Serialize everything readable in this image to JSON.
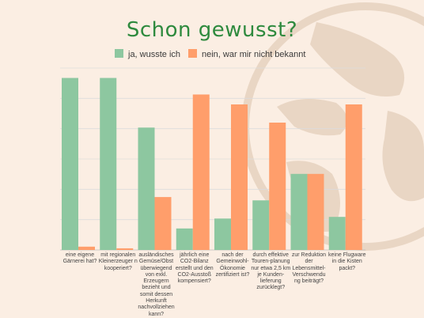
{
  "chart_data": {
    "type": "bar",
    "title": "Schon gewusst?",
    "categories": [
      "eine eigene Gärnerei hat?",
      "mit regionalen Kleinerzeuger n kooperiert?",
      "ausländisches Gemüse/Obst überwiegend von exkl. Erzeugern bezieht und somit dessen Herkunft nachvollziehen kann?",
      "jährlich eine CO2-Bilanz erstellt und den CO2-Ausstoß kompensiert?",
      "nach der Gemeinwohl-Ökonomie zertifiziert ist?",
      "durch effektive Touren-planung nur etwa 2,5 km je Kunden-lieferung zurücklegt?",
      "zur Reduktion der Lebensmittel-Verschwendu ng beiträgt?",
      "keine Flugware in die Kisten packt?"
    ],
    "series": [
      {
        "name": "ja, wusste ich",
        "color": "#8dc7a0",
        "values": [
          52,
          52,
          37,
          6.5,
          9.5,
          15,
          23,
          10
        ]
      },
      {
        "name": "nein, war mir nicht bekannt",
        "color": "#ff9e6b",
        "values": [
          1,
          0.5,
          16,
          47,
          44,
          38.5,
          23,
          44
        ]
      }
    ],
    "ylim": [
      0,
      55
    ],
    "grid": true,
    "legend": "top"
  }
}
